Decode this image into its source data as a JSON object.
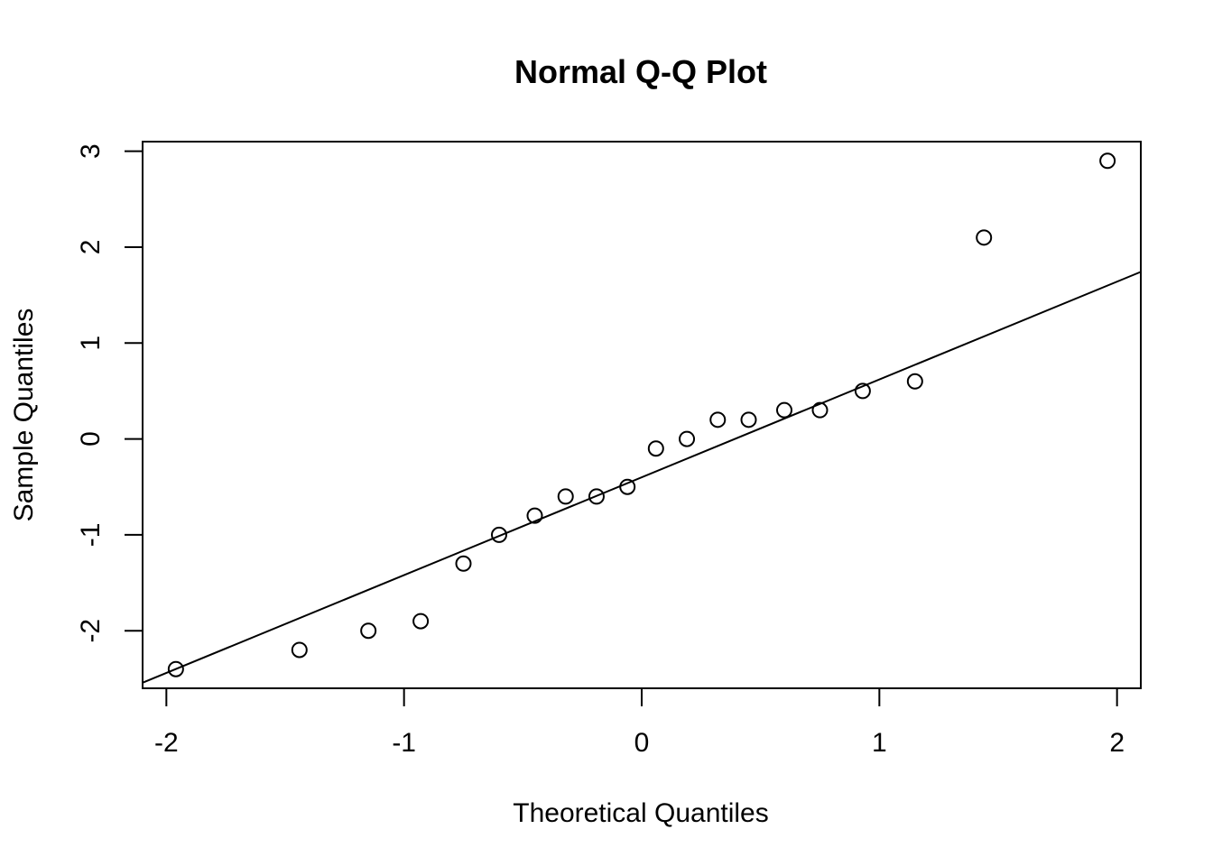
{
  "chart_data": {
    "type": "scatter",
    "title": "Normal Q-Q Plot",
    "xlabel": "Theoretical Quantiles",
    "ylabel": "Sample Quantiles",
    "xlim": [
      -2.1,
      2.1
    ],
    "ylim": [
      -2.6,
      3.1
    ],
    "x_ticks": [
      -2,
      -1,
      0,
      1,
      2
    ],
    "x_tick_labels": [
      "-2",
      "-1",
      "0",
      "1",
      "2"
    ],
    "y_ticks": [
      -2,
      -1,
      0,
      1,
      2,
      3
    ],
    "y_tick_labels": [
      "-2",
      "-1",
      "0",
      "1",
      "2",
      "3"
    ],
    "grid": false,
    "points": [
      {
        "x": -1.96,
        "y": -2.4
      },
      {
        "x": -1.44,
        "y": -2.2
      },
      {
        "x": -1.15,
        "y": -2.0
      },
      {
        "x": -0.93,
        "y": -1.9
      },
      {
        "x": -0.75,
        "y": -1.3
      },
      {
        "x": -0.6,
        "y": -1.0
      },
      {
        "x": -0.45,
        "y": -0.8
      },
      {
        "x": -0.32,
        "y": -0.6
      },
      {
        "x": -0.19,
        "y": -0.6
      },
      {
        "x": -0.06,
        "y": -0.5
      },
      {
        "x": 0.06,
        "y": -0.1
      },
      {
        "x": 0.19,
        "y": 0.0
      },
      {
        "x": 0.32,
        "y": 0.2
      },
      {
        "x": 0.45,
        "y": 0.2
      },
      {
        "x": 0.6,
        "y": 0.3
      },
      {
        "x": 0.75,
        "y": 0.3
      },
      {
        "x": 0.93,
        "y": 0.5
      },
      {
        "x": 1.15,
        "y": 0.6
      },
      {
        "x": 1.44,
        "y": 2.1
      },
      {
        "x": 1.96,
        "y": 2.9
      }
    ],
    "reference_line": {
      "intercept": -0.4,
      "slope": 1.02
    }
  }
}
